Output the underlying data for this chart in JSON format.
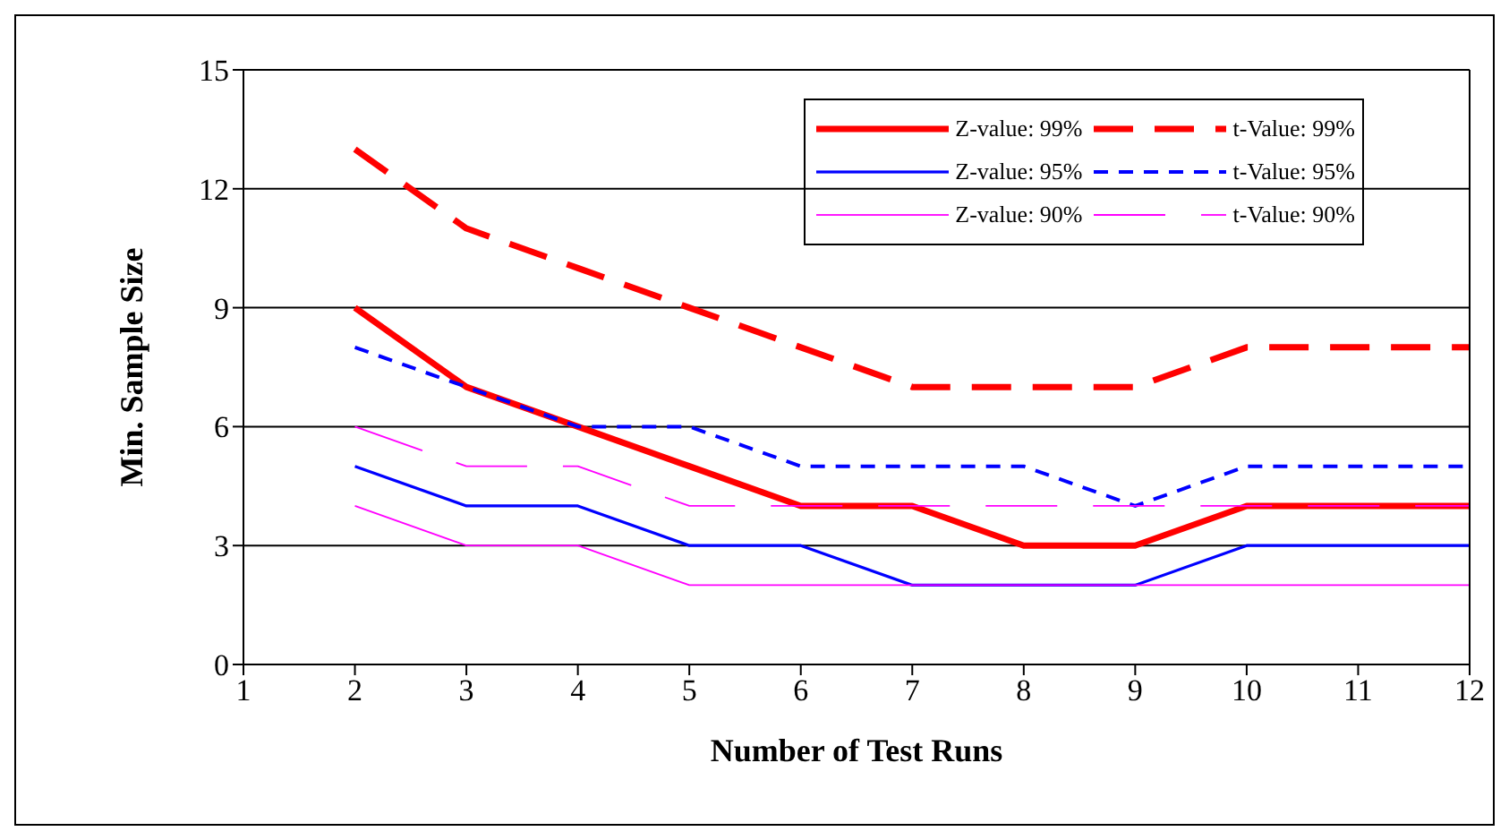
{
  "chart_data": {
    "type": "line",
    "xlabel": "Number of Test Runs",
    "ylabel": "Min. Sample Size",
    "x": [
      2,
      3,
      4,
      5,
      6,
      7,
      8,
      9,
      10,
      11,
      12
    ],
    "xlim": [
      1,
      12
    ],
    "xticks": [
      1,
      2,
      3,
      4,
      5,
      6,
      7,
      8,
      9,
      10,
      11,
      12
    ],
    "ylim": [
      0,
      15
    ],
    "yticks": [
      0,
      3,
      6,
      9,
      12,
      15
    ],
    "grid": "y",
    "legend": "top right",
    "marker": "none",
    "series": [
      {
        "name": "Z-value: 99%",
        "color": "#ff0000",
        "line_style": "solid",
        "values": [
          9,
          7,
          6,
          5,
          4,
          4,
          3,
          3,
          4,
          4,
          4
        ]
      },
      {
        "name": "t-Value: 99%",
        "color": "#ff0000",
        "line_style": "dashed",
        "values": [
          13,
          11,
          10,
          9,
          8,
          7,
          7,
          7,
          8,
          8,
          8
        ]
      },
      {
        "name": "Z-value: 95%",
        "color": "#0000ff",
        "line_style": "solid",
        "values": [
          5,
          4,
          4,
          3,
          3,
          2,
          2,
          2,
          3,
          3,
          3
        ]
      },
      {
        "name": "t-Value: 95%",
        "color": "#0000ff",
        "line_style": "dashed",
        "values": [
          8,
          7,
          6,
          6,
          5,
          5,
          5,
          4,
          5,
          5,
          5
        ]
      },
      {
        "name": "Z-value: 90%",
        "color": "#ff00ff",
        "line_style": "solid",
        "values": [
          4,
          3,
          3,
          2,
          2,
          2,
          2,
          2,
          2,
          2,
          2
        ]
      },
      {
        "name": "t-Value: 90%",
        "color": "#ff00ff",
        "line_style": "dashed",
        "values": [
          6,
          5,
          5,
          4,
          4,
          4,
          4,
          4,
          4,
          4,
          4
        ]
      }
    ]
  }
}
